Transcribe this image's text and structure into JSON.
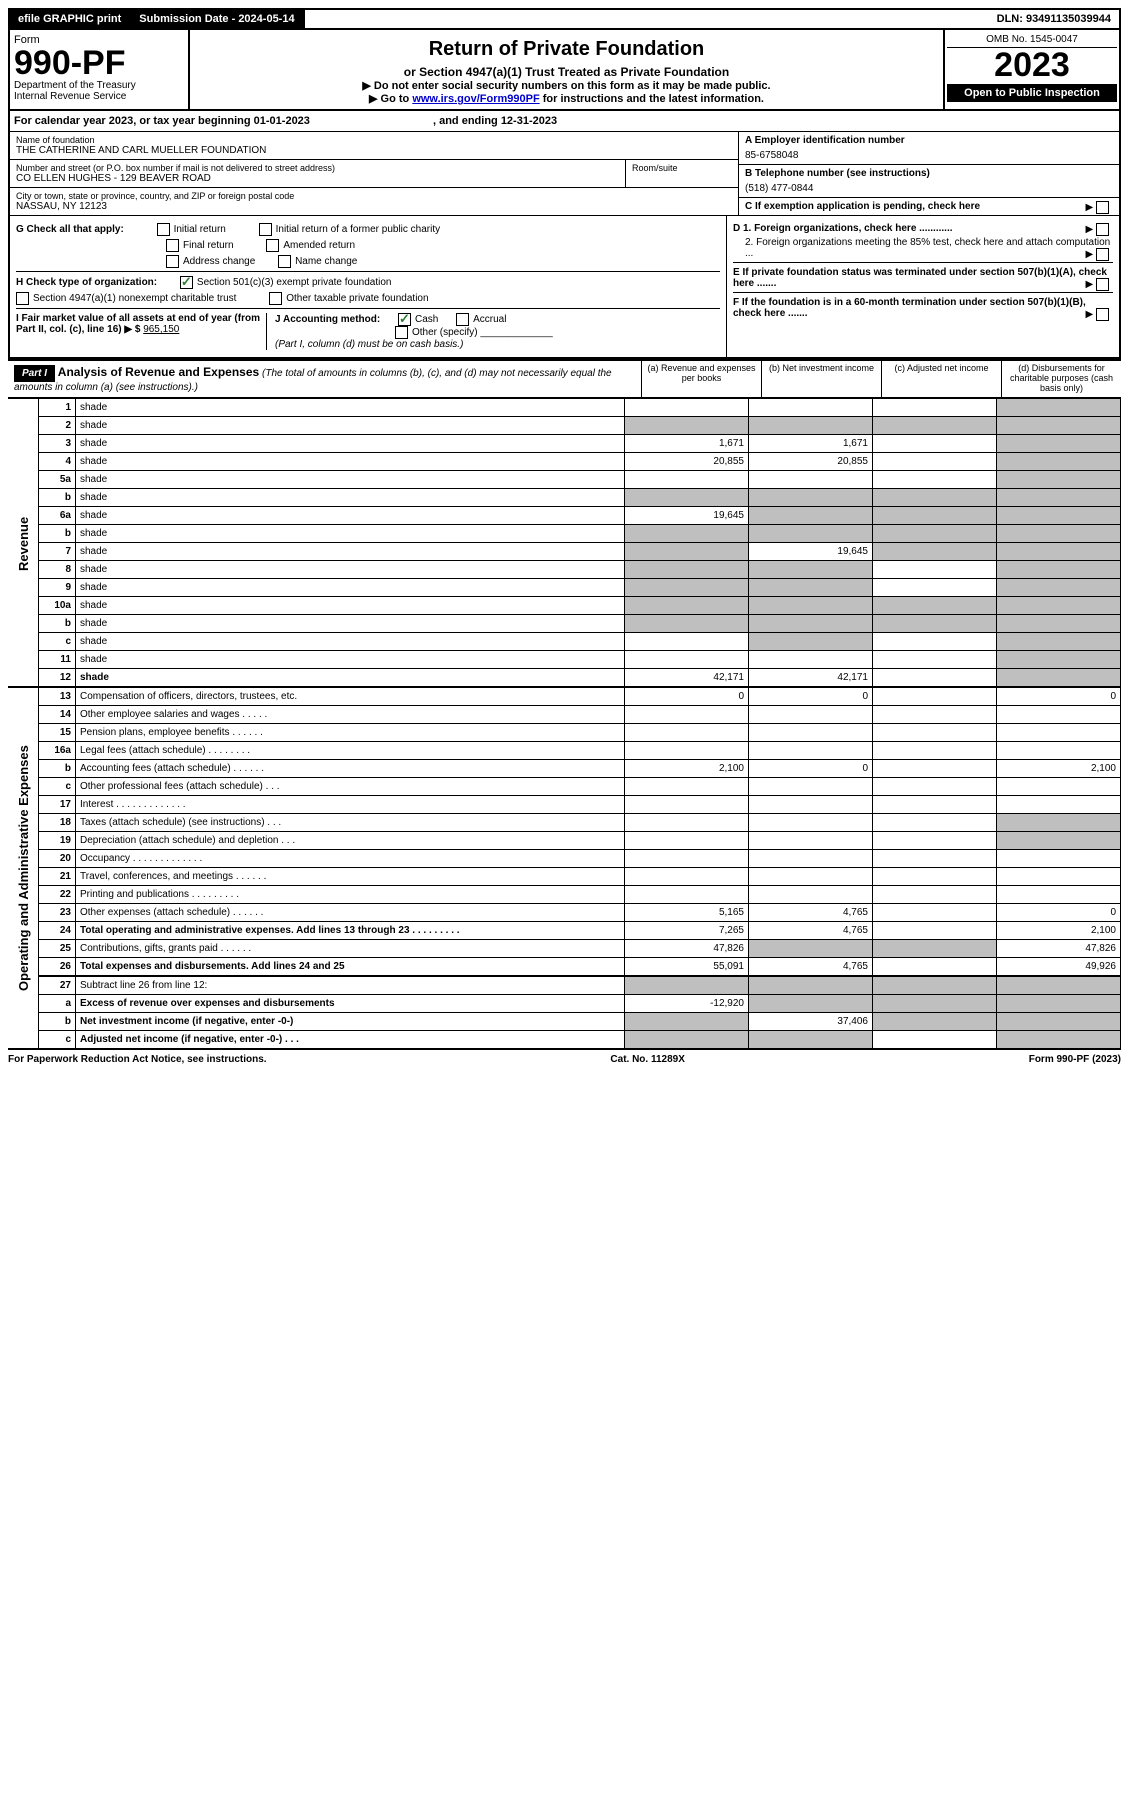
{
  "topbar": {
    "efile": "efile GRAPHIC print",
    "sub_label": "Submission Date - 2024-05-14",
    "dln": "DLN: 93491135039944"
  },
  "header": {
    "form_label": "Form",
    "form_no": "990-PF",
    "dept": "Department of the Treasury",
    "irs": "Internal Revenue Service",
    "title": "Return of Private Foundation",
    "subtitle": "or Section 4947(a)(1) Trust Treated as Private Foundation",
    "instr1": "▶ Do not enter social security numbers on this form as it may be made public.",
    "instr2_pre": "▶ Go to ",
    "instr2_link": "www.irs.gov/Form990PF",
    "instr2_post": " for instructions and the latest information.",
    "omb": "OMB No. 1545-0047",
    "year": "2023",
    "open": "Open to Public Inspection"
  },
  "calyear": {
    "text_pre": "For calendar year 2023, or tax year beginning 01-01-2023",
    "text_post": ", and ending 12-31-2023"
  },
  "id": {
    "name_label": "Name of foundation",
    "name": "THE CATHERINE AND CARL MUELLER FOUNDATION",
    "addr_label": "Number and street (or P.O. box number if mail is not delivered to street address)",
    "addr": "CO ELLEN HUGHES - 129 BEAVER ROAD",
    "room_label": "Room/suite",
    "city_label": "City or town, state or province, country, and ZIP or foreign postal code",
    "city": "NASSAU, NY  12123",
    "ein_label": "A Employer identification number",
    "ein": "85-6758048",
    "phone_label": "B Telephone number (see instructions)",
    "phone": "(518) 477-0844",
    "c_label": "C If exemption application is pending, check here"
  },
  "checks": {
    "g_label": "G Check all that apply:",
    "g_initial": "Initial return",
    "g_initial_former": "Initial return of a former public charity",
    "g_final": "Final return",
    "g_amended": "Amended return",
    "g_addr": "Address change",
    "g_name": "Name change",
    "h_label": "H Check type of organization:",
    "h_501c3": "Section 501(c)(3) exempt private foundation",
    "h_4947": "Section 4947(a)(1) nonexempt charitable trust",
    "h_other": "Other taxable private foundation",
    "i_label": "I Fair market value of all assets at end of year (from Part II, col. (c), line 16) ▶ $",
    "i_value": "965,150",
    "j_label": "J Accounting method:",
    "j_cash": "Cash",
    "j_accrual": "Accrual",
    "j_other": "Other (specify)",
    "j_note": "(Part I, column (d) must be on cash basis.)",
    "d1": "D 1. Foreign organizations, check here ............",
    "d2": "2. Foreign organizations meeting the 85% test, check here and attach computation ...",
    "e_label": "E  If private foundation status was terminated under section 507(b)(1)(A), check here .......",
    "f_label": "F  If the foundation is in a 60-month termination under section 507(b)(1)(B), check here ......."
  },
  "part1": {
    "label": "Part I",
    "title": "Analysis of Revenue and Expenses",
    "note": "(The total of amounts in columns (b), (c), and (d) may not necessarily equal the amounts in column (a) (see instructions).)",
    "col_a": "(a) Revenue and expenses per books",
    "col_b": "(b) Net investment income",
    "col_c": "(c) Adjusted net income",
    "col_d": "(d) Disbursements for charitable purposes (cash basis only)"
  },
  "sections": {
    "revenue": "Revenue",
    "expenses": "Operating and Administrative Expenses"
  },
  "rows": [
    {
      "n": "1",
      "d": "shade",
      "a": "",
      "b": "",
      "c": ""
    },
    {
      "n": "2",
      "d": "shade",
      "a": "shade",
      "b": "shade",
      "c": "shade"
    },
    {
      "n": "3",
      "d": "shade",
      "a": "1,671",
      "b": "1,671",
      "c": ""
    },
    {
      "n": "4",
      "d": "shade",
      "a": "20,855",
      "b": "20,855",
      "c": ""
    },
    {
      "n": "5a",
      "d": "shade",
      "a": "",
      "b": "",
      "c": ""
    },
    {
      "n": "b",
      "d": "shade",
      "a": "shade",
      "b": "shade",
      "c": "shade"
    },
    {
      "n": "6a",
      "d": "shade",
      "a": "19,645",
      "b": "shade",
      "c": "shade"
    },
    {
      "n": "b",
      "d": "shade",
      "a": "shade",
      "b": "shade",
      "c": "shade"
    },
    {
      "n": "7",
      "d": "shade",
      "a": "shade",
      "b": "19,645",
      "c": "shade"
    },
    {
      "n": "8",
      "d": "shade",
      "a": "shade",
      "b": "shade",
      "c": ""
    },
    {
      "n": "9",
      "d": "shade",
      "a": "shade",
      "b": "shade",
      "c": ""
    },
    {
      "n": "10a",
      "d": "shade",
      "a": "shade",
      "b": "shade",
      "c": "shade"
    },
    {
      "n": "b",
      "d": "shade",
      "a": "shade",
      "b": "shade",
      "c": "shade"
    },
    {
      "n": "c",
      "d": "shade",
      "a": "",
      "b": "shade",
      "c": ""
    },
    {
      "n": "11",
      "d": "shade",
      "a": "",
      "b": "",
      "c": ""
    },
    {
      "n": "12",
      "d": "shade",
      "a": "42,171",
      "b": "42,171",
      "c": "",
      "bold": true,
      "thick": true
    }
  ],
  "exp_rows": [
    {
      "n": "13",
      "d": "Compensation of officers, directors, trustees, etc.",
      "a": "0",
      "b": "0",
      "c": "",
      "dval": "0"
    },
    {
      "n": "14",
      "d": "Other employee salaries and wages   .   .   .   .   .",
      "a": "",
      "b": "",
      "c": "",
      "dval": ""
    },
    {
      "n": "15",
      "d": "Pension plans, employee benefits  .   .   .   .   .   .",
      "a": "",
      "b": "",
      "c": "",
      "dval": ""
    },
    {
      "n": "16a",
      "d": "Legal fees (attach schedule)  .   .   .   .   .   .   .   .",
      "a": "",
      "b": "",
      "c": "",
      "dval": ""
    },
    {
      "n": "b",
      "d": "Accounting fees (attach schedule)  .   .   .   .   .   .",
      "a": "2,100",
      "b": "0",
      "c": "",
      "dval": "2,100"
    },
    {
      "n": "c",
      "d": "Other professional fees (attach schedule)   .   .   .",
      "a": "",
      "b": "",
      "c": "",
      "dval": ""
    },
    {
      "n": "17",
      "d": "Interest  .   .   .   .   .   .   .   .   .   .   .   .   .",
      "a": "",
      "b": "",
      "c": "",
      "dval": ""
    },
    {
      "n": "18",
      "d": "Taxes (attach schedule) (see instructions)   .   .   .",
      "a": "",
      "b": "",
      "c": "",
      "dval": "shade"
    },
    {
      "n": "19",
      "d": "Depreciation (attach schedule) and depletion   .   .   .",
      "a": "",
      "b": "",
      "c": "",
      "dval": "shade"
    },
    {
      "n": "20",
      "d": "Occupancy  .   .   .   .   .   .   .   .   .   .   .   .   .",
      "a": "",
      "b": "",
      "c": "",
      "dval": ""
    },
    {
      "n": "21",
      "d": "Travel, conferences, and meetings  .   .   .   .   .   .",
      "a": "",
      "b": "",
      "c": "",
      "dval": ""
    },
    {
      "n": "22",
      "d": "Printing and publications  .   .   .   .   .   .   .   .   .",
      "a": "",
      "b": "",
      "c": "",
      "dval": ""
    },
    {
      "n": "23",
      "d": "Other expenses (attach schedule)  .   .   .   .   .   .",
      "a": "5,165",
      "b": "4,765",
      "c": "",
      "dval": "0"
    },
    {
      "n": "24",
      "d": "Total operating and administrative expenses. Add lines 13 through 23   .   .   .   .   .   .   .   .   .",
      "a": "7,265",
      "b": "4,765",
      "c": "",
      "dval": "2,100",
      "bold": true
    },
    {
      "n": "25",
      "d": "Contributions, gifts, grants paid   .   .   .   .   .   .",
      "a": "47,826",
      "b": "shade",
      "c": "shade",
      "dval": "47,826"
    },
    {
      "n": "26",
      "d": "Total expenses and disbursements. Add lines 24 and 25",
      "a": "55,091",
      "b": "4,765",
      "c": "",
      "dval": "49,926",
      "bold": true,
      "thick": true
    },
    {
      "n": "27",
      "d": "Subtract line 26 from line 12:",
      "a": "shade",
      "b": "shade",
      "c": "shade",
      "dval": "shade"
    },
    {
      "n": "a",
      "d": "Excess of revenue over expenses and disbursements",
      "a": "-12,920",
      "b": "shade",
      "c": "shade",
      "dval": "shade",
      "bold": true
    },
    {
      "n": "b",
      "d": "Net investment income (if negative, enter -0-)",
      "a": "shade",
      "b": "37,406",
      "c": "shade",
      "dval": "shade",
      "bold": true
    },
    {
      "n": "c",
      "d": "Adjusted net income (if negative, enter -0-)   .   .   .",
      "a": "shade",
      "b": "shade",
      "c": "",
      "dval": "shade",
      "bold": true,
      "thick": true
    }
  ],
  "footer": {
    "left": "For Paperwork Reduction Act Notice, see instructions.",
    "mid": "Cat. No. 11289X",
    "right": "Form 990-PF (2023)"
  }
}
